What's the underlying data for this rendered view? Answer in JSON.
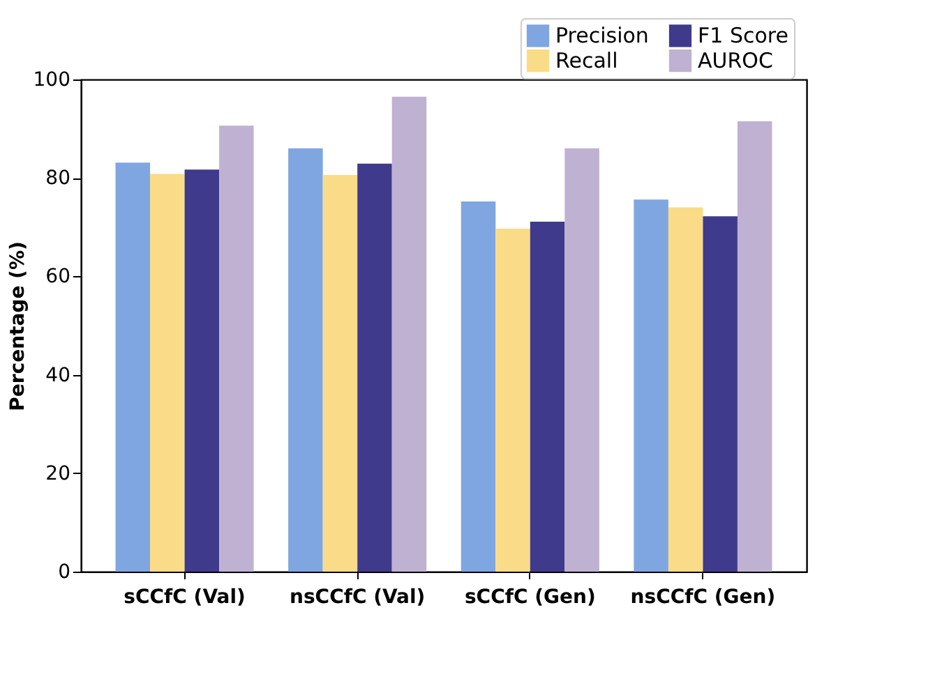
{
  "chart_data": {
    "type": "bar",
    "ylabel": "Percentage (%)",
    "categories": [
      "sCCfC (Val)",
      "nsCCfC (Val)",
      "sCCfC (Gen)",
      "nsCCfC (Gen)"
    ],
    "series": [
      {
        "name": "Precision",
        "color": "#7fa6e0",
        "values": [
          83.1,
          86.0,
          75.2,
          75.6
        ]
      },
      {
        "name": "Recall",
        "color": "#fadb87",
        "values": [
          80.8,
          80.6,
          69.7,
          74.0
        ]
      },
      {
        "name": "F1 Score",
        "color": "#3f3a8c",
        "values": [
          81.7,
          82.9,
          71.1,
          72.2
        ]
      },
      {
        "name": "AUROC",
        "color": "#bfb1d2",
        "values": [
          90.6,
          96.5,
          86.0,
          91.5
        ]
      }
    ],
    "ylim": [
      0,
      100
    ],
    "yticks": [
      0,
      20,
      40,
      60,
      80,
      100
    ],
    "grid": false,
    "legend": "top right"
  }
}
